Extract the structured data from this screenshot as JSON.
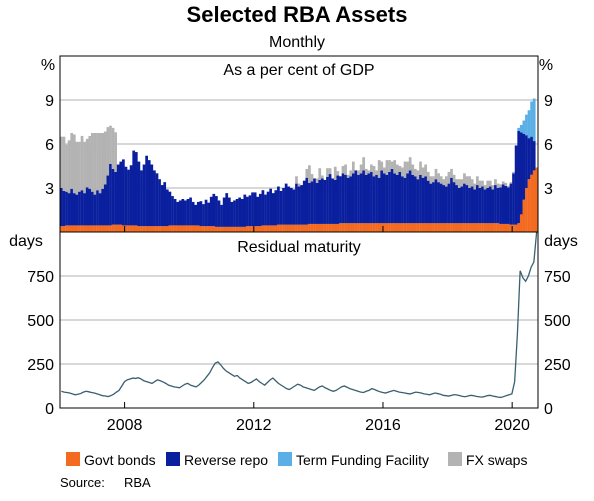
{
  "title": "Selected RBA Assets",
  "subtitle": "Monthly",
  "source_label": "Source:",
  "source_value": "RBA",
  "colors": {
    "govt_bonds": "#F26B21",
    "reverse_repo": "#0A1F9E",
    "tff": "#5AAFE6",
    "fx_swaps": "#B3B3B3",
    "maturity_line": "#3A6070",
    "grid": "#B0B0B0"
  },
  "chart_data": [
    {
      "type": "bar",
      "stacked": true,
      "panel_title": "As a per cent of GDP",
      "unit_left": "%",
      "unit_right": "%",
      "ylim": [
        0,
        12
      ],
      "yticks": [
        3,
        6,
        9
      ],
      "x_start": 2006.0,
      "x_end": 2020.8,
      "xticks": [
        2008,
        2012,
        2016,
        2020
      ],
      "legend_placement": "bottom",
      "series": [
        {
          "name": "Govt bonds",
          "color_key": "govt_bonds",
          "values": [
            0.4,
            0.4,
            0.45,
            0.45,
            0.45,
            0.45,
            0.45,
            0.45,
            0.45,
            0.45,
            0.45,
            0.45,
            0.45,
            0.45,
            0.45,
            0.45,
            0.45,
            0.45,
            0.45,
            0.45,
            0.5,
            0.5,
            0.5,
            0.5,
            0.45,
            0.45,
            0.45,
            0.45,
            0.45,
            0.45,
            0.4,
            0.4,
            0.4,
            0.4,
            0.4,
            0.4,
            0.4,
            0.4,
            0.4,
            0.4,
            0.4,
            0.4,
            0.45,
            0.45,
            0.45,
            0.45,
            0.45,
            0.45,
            0.45,
            0.45,
            0.45,
            0.45,
            0.45,
            0.45,
            0.4,
            0.4,
            0.4,
            0.4,
            0.4,
            0.4,
            0.35,
            0.35,
            0.35,
            0.35,
            0.35,
            0.35,
            0.35,
            0.35,
            0.35,
            0.35,
            0.35,
            0.35,
            0.4,
            0.4,
            0.4,
            0.4,
            0.4,
            0.4,
            0.45,
            0.45,
            0.45,
            0.45,
            0.45,
            0.45,
            0.5,
            0.5,
            0.5,
            0.5,
            0.5,
            0.5,
            0.5,
            0.5,
            0.5,
            0.5,
            0.5,
            0.5,
            0.55,
            0.55,
            0.55,
            0.55,
            0.55,
            0.55,
            0.55,
            0.55,
            0.55,
            0.55,
            0.55,
            0.55,
            0.6,
            0.6,
            0.6,
            0.6,
            0.6,
            0.6,
            0.6,
            0.6,
            0.6,
            0.6,
            0.6,
            0.6,
            0.6,
            0.6,
            0.6,
            0.6,
            0.6,
            0.6,
            0.6,
            0.6,
            0.6,
            0.6,
            0.6,
            0.6,
            0.6,
            0.6,
            0.6,
            0.6,
            0.6,
            0.6,
            0.6,
            0.6,
            0.6,
            0.6,
            0.6,
            0.6,
            0.6,
            0.6,
            0.6,
            0.6,
            0.6,
            0.6,
            0.6,
            0.6,
            0.6,
            0.6,
            0.6,
            0.6,
            0.6,
            0.6,
            0.6,
            0.6,
            0.6,
            0.6,
            0.6,
            0.6,
            0.6,
            0.6,
            0.6,
            0.6,
            0.6,
            0.6,
            0.55,
            0.55,
            0.55,
            0.55,
            0.5,
            0.5,
            0.5,
            0.6,
            1.2,
            2.2,
            3.0,
            3.6,
            3.9,
            4.2,
            4.4
          ]
        },
        {
          "name": "Reverse repo",
          "color_key": "reverse_repo",
          "values": [
            2.6,
            2.4,
            2.3,
            2.2,
            2.5,
            2.2,
            2.1,
            2.3,
            2.4,
            2.2,
            2.6,
            2.5,
            2.3,
            2.1,
            2.4,
            2.2,
            2.5,
            2.8,
            3.4,
            4.2,
            3.8,
            3.6,
            4.1,
            4.3,
            4.5,
            4.0,
            3.8,
            4.1,
            5.1,
            5.0,
            4.4,
            3.8,
            4.2,
            4.8,
            4.5,
            4.2,
            3.8,
            3.6,
            3.2,
            2.8,
            3.0,
            2.5,
            2.3,
            2.0,
            1.8,
            1.6,
            1.7,
            1.8,
            1.7,
            1.8,
            1.9,
            1.6,
            1.4,
            1.6,
            1.7,
            1.5,
            1.8,
            1.6,
            2.0,
            2.2,
            2.1,
            1.8,
            1.5,
            2.0,
            2.3,
            2.0,
            1.7,
            1.8,
            1.9,
            2.0,
            1.9,
            2.2,
            2.0,
            2.1,
            2.3,
            2.3,
            2.0,
            2.2,
            2.4,
            2.1,
            2.3,
            2.5,
            2.2,
            2.4,
            2.6,
            2.3,
            2.5,
            2.8,
            2.6,
            2.5,
            2.4,
            2.8,
            2.6,
            2.7,
            3.0,
            3.2,
            2.8,
            2.9,
            3.1,
            2.8,
            3.0,
            3.1,
            3.0,
            3.2,
            3.4,
            3.1,
            3.0,
            3.3,
            3.2,
            3.4,
            3.3,
            3.1,
            3.2,
            3.4,
            3.6,
            3.3,
            3.4,
            3.6,
            3.3,
            3.4,
            3.5,
            3.2,
            3.3,
            3.1,
            3.6,
            3.4,
            3.3,
            3.5,
            3.7,
            3.4,
            3.3,
            3.5,
            3.2,
            3.1,
            3.4,
            3.6,
            3.3,
            3.2,
            3.0,
            3.3,
            3.1,
            3.2,
            2.9,
            2.7,
            2.8,
            3.0,
            2.8,
            2.7,
            2.6,
            2.5,
            2.7,
            3.1,
            2.8,
            2.6,
            2.4,
            2.5,
            2.7,
            2.6,
            2.4,
            2.5,
            2.3,
            2.6,
            2.4,
            2.5,
            2.3,
            2.4,
            2.5,
            2.3,
            2.6,
            2.4,
            2.5,
            2.7,
            2.6,
            2.5,
            2.8,
            3.5,
            5.4,
            6.3,
            5.6,
            4.5,
            3.6,
            2.8,
            2.6,
            2.0
          ]
        },
        {
          "name": "Term Funding Facility",
          "color_key": "tff",
          "values": [
            0,
            0,
            0,
            0,
            0,
            0,
            0,
            0,
            0,
            0,
            0,
            0,
            0,
            0,
            0,
            0,
            0,
            0,
            0,
            0,
            0,
            0,
            0,
            0,
            0,
            0,
            0,
            0,
            0,
            0,
            0,
            0,
            0,
            0,
            0,
            0,
            0,
            0,
            0,
            0,
            0,
            0,
            0,
            0,
            0,
            0,
            0,
            0,
            0,
            0,
            0,
            0,
            0,
            0,
            0,
            0,
            0,
            0,
            0,
            0,
            0,
            0,
            0,
            0,
            0,
            0,
            0,
            0,
            0,
            0,
            0,
            0,
            0,
            0,
            0,
            0,
            0,
            0,
            0,
            0,
            0,
            0,
            0,
            0,
            0,
            0,
            0,
            0,
            0,
            0,
            0,
            0,
            0,
            0,
            0,
            0,
            0,
            0,
            0,
            0,
            0,
            0,
            0,
            0,
            0,
            0,
            0,
            0,
            0,
            0,
            0,
            0,
            0,
            0,
            0,
            0,
            0,
            0,
            0,
            0,
            0,
            0,
            0,
            0,
            0,
            0,
            0,
            0,
            0,
            0,
            0,
            0,
            0,
            0,
            0,
            0,
            0,
            0,
            0,
            0,
            0,
            0,
            0,
            0,
            0,
            0,
            0,
            0,
            0,
            0,
            0,
            0,
            0,
            0,
            0,
            0,
            0,
            0,
            0,
            0,
            0,
            0,
            0,
            0,
            0,
            0,
            0,
            0,
            0,
            0,
            0,
            0,
            0,
            0,
            0,
            0,
            0,
            0.2,
            0.5,
            0.9,
            1.4,
            1.9,
            2.4,
            2.9,
            3.1
          ]
        },
        {
          "name": "FX swaps",
          "color_key": "fx_swaps",
          "values": [
            3.5,
            3.7,
            3.2,
            3.6,
            3.8,
            4.0,
            3.6,
            3.4,
            3.7,
            3.5,
            3.3,
            3.6,
            4.0,
            4.2,
            3.9,
            4.1,
            3.8,
            3.6,
            3.3,
            2.6,
            2.8,
            2.7,
            0,
            0,
            0,
            0,
            0,
            0,
            0,
            0,
            0,
            0,
            0,
            0,
            0,
            0,
            0,
            0,
            0,
            0,
            0,
            0,
            0,
            0,
            0,
            0,
            0,
            0,
            0,
            0,
            0,
            0,
            0,
            0,
            0,
            0,
            0,
            0,
            0,
            0,
            0,
            0,
            0,
            0,
            0,
            0,
            0,
            0,
            0,
            0,
            0,
            0,
            0,
            0,
            0,
            0,
            0,
            0,
            0,
            0,
            0,
            0,
            0,
            0,
            0,
            0,
            0,
            0,
            0,
            0,
            0,
            0.5,
            0.2,
            0,
            0,
            0.6,
            1.2,
            0.5,
            0,
            0.3,
            0.8,
            0.2,
            0,
            0.6,
            0.4,
            0,
            0.9,
            0.3,
            0,
            0.5,
            0.7,
            0.2,
            0.4,
            0.8,
            0,
            0.3,
            0.6,
            0.9,
            0.4,
            0.2,
            0.5,
            0.7,
            0.3,
            1.2,
            0.6,
            0.4,
            1.0,
            0.8,
            0.5,
            0.9,
            0.7,
            0.4,
            0.6,
            1.1,
            0.8,
            0.9,
            0.7,
            0.5,
            0.6,
            0.9,
            0.7,
            0.8,
            0.6,
            0.5,
            0.4,
            0.7,
            0.6,
            0.5,
            0.4,
            0.7,
            0.8,
            0.6,
            0.5,
            0.4,
            0.6,
            0.5,
            0.7,
            0.6,
            0.8,
            0.5,
            0.4,
            0.6,
            0.5,
            0.4,
            0.3,
            0.5,
            0.4,
            0.3,
            0.4,
            0.3,
            0.2,
            0.2,
            0.2,
            0.1,
            0.1,
            0.1
          ]
        }
      ]
    },
    {
      "type": "line",
      "panel_title": "Residual maturity",
      "unit_left": "days",
      "unit_right": "days",
      "ylim": [
        0,
        1000
      ],
      "yticks": [
        0,
        250,
        500,
        750
      ],
      "x_start": 2006.0,
      "x_end": 2020.8,
      "xticks": [
        2008,
        2012,
        2016,
        2020
      ],
      "series": [
        {
          "name": "Residual maturity",
          "color_key": "maturity_line",
          "values": [
            95,
            90,
            88,
            85,
            80,
            75,
            78,
            82,
            90,
            95,
            92,
            88,
            85,
            80,
            75,
            70,
            68,
            65,
            70,
            78,
            90,
            100,
            125,
            150,
            160,
            165,
            170,
            168,
            172,
            165,
            155,
            150,
            145,
            140,
            150,
            160,
            155,
            148,
            140,
            130,
            125,
            120,
            118,
            115,
            125,
            135,
            140,
            130,
            125,
            120,
            130,
            145,
            160,
            180,
            200,
            230,
            255,
            262,
            245,
            225,
            210,
            200,
            190,
            180,
            185,
            170,
            160,
            150,
            140,
            145,
            155,
            165,
            150,
            140,
            130,
            145,
            160,
            170,
            155,
            140,
            130,
            120,
            110,
            105,
            115,
            125,
            135,
            130,
            120,
            115,
            110,
            105,
            100,
            110,
            120,
            125,
            115,
            108,
            100,
            95,
            100,
            110,
            120,
            125,
            118,
            110,
            105,
            100,
            95,
            90,
            88,
            95,
            100,
            110,
            105,
            98,
            92,
            88,
            85,
            90,
            95,
            100,
            95,
            90,
            88,
            85,
            82,
            80,
            85,
            90,
            88,
            85,
            80,
            78,
            75,
            80,
            85,
            82,
            78,
            72,
            70,
            68,
            72,
            76,
            74,
            70,
            66,
            64,
            68,
            72,
            70,
            66,
            64,
            62,
            65,
            70,
            72,
            68,
            65,
            62,
            60,
            65,
            70,
            75,
            80,
            150,
            420,
            780,
            740,
            720,
            750,
            800,
            830,
            1000
          ]
        }
      ]
    }
  ],
  "legend": [
    {
      "label": "Govt bonds",
      "color_key": "govt_bonds"
    },
    {
      "label": "Reverse repo",
      "color_key": "reverse_repo"
    },
    {
      "label": "Term Funding Facility",
      "color_key": "tff"
    },
    {
      "label": "FX swaps",
      "color_key": "fx_swaps"
    }
  ]
}
